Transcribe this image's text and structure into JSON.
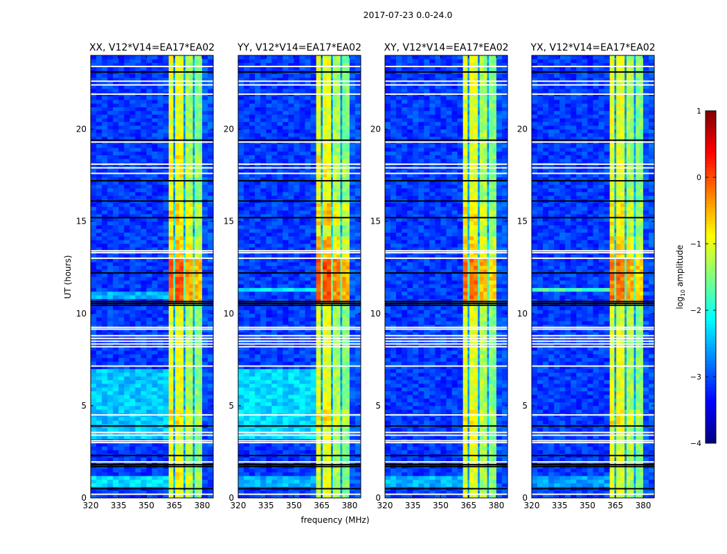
{
  "chart_data": {
    "type": "heatmap",
    "title": "2017-07-23 0.0-24.0",
    "xlabel": "frequency (MHz)",
    "ylabel": "UT (hours)",
    "xlim": [
      320,
      386
    ],
    "ylim": [
      0,
      24
    ],
    "xticks": [
      "320",
      "335",
      "350",
      "365",
      "380"
    ],
    "xtick_values": [
      320,
      335,
      350,
      365,
      380
    ],
    "yticks": [
      "0",
      "5",
      "10",
      "15",
      "20"
    ],
    "ytick_values": [
      0,
      5,
      10,
      15,
      20
    ],
    "colorbar": {
      "label": "log10 amplitude",
      "label_main": "log",
      "label_sub": "10",
      "label_rest": " amplitude",
      "colormap": "jet",
      "range": [
        -4,
        1
      ],
      "ticks": [
        "−4",
        "−3",
        "−2",
        "−1",
        "0",
        "1"
      ],
      "tick_values": [
        -4,
        -3,
        -2,
        -1,
        0,
        1
      ]
    },
    "frequency_profile_log10": [
      [
        320,
        362,
        -3.1
      ],
      [
        362,
        364.5,
        -1.0
      ],
      [
        364.5,
        365.5,
        -2.6
      ],
      [
        365.5,
        370,
        -1.0
      ],
      [
        370,
        371,
        -2.6
      ],
      [
        371,
        375,
        -1.3
      ],
      [
        375,
        376,
        -2.6
      ],
      [
        376,
        380,
        -1.5
      ],
      [
        380,
        386,
        -3.0
      ]
    ],
    "rfi_band": [
      362,
      380
    ],
    "flagged_hours_white": [
      0.2,
      1.95,
      3.0,
      3.1,
      3.4,
      3.55,
      4.5,
      7.15,
      8.2,
      8.35,
      8.5,
      8.65,
      8.8,
      9.15,
      9.25,
      13.3,
      13.4,
      13.0,
      17.6,
      17.9,
      18.1,
      19.3,
      21.9,
      22.4,
      22.6,
      23.4
    ],
    "flagged_hours_black": [
      0.5,
      1.7,
      1.8,
      2.3,
      3.9,
      10.45,
      10.55,
      10.65,
      12.2,
      15.2,
      16.1,
      17.2,
      19.4,
      23.1
    ],
    "panels": [
      {
        "title": "XX, V12*V14=EA17*EA02",
        "band_boost": [
          [
            10.7,
            13.1,
            0.9
          ],
          [
            13.1,
            14.2,
            0.4
          ],
          [
            3.8,
            4.9,
            0.3
          ],
          [
            14.8,
            16.0,
            0.35
          ],
          [
            17.5,
            18.6,
            0.2
          ],
          [
            0.9,
            1.5,
            0.2
          ]
        ],
        "lowfreq_level": [
          [
            3.3,
            7.0,
            -2.4
          ],
          [
            0.7,
            1.3,
            -2.3
          ],
          [
            10.9,
            11.3,
            -2.5
          ]
        ]
      },
      {
        "title": "YY, V12*V14=EA17*EA02",
        "band_boost": [
          [
            10.7,
            13.1,
            1.0
          ],
          [
            13.1,
            14.2,
            0.5
          ],
          [
            3.8,
            4.9,
            0.35
          ],
          [
            14.8,
            16.0,
            0.4
          ],
          [
            17.5,
            18.6,
            0.2
          ]
        ],
        "lowfreq_level": [
          [
            3.3,
            7.0,
            -2.3
          ],
          [
            0.7,
            1.3,
            -2.5
          ],
          [
            11.2,
            11.5,
            -2.2
          ]
        ]
      },
      {
        "title": "XY, V12*V14=EA17*EA02",
        "band_boost": [
          [
            10.7,
            13.1,
            0.8
          ],
          [
            13.1,
            14.2,
            0.3
          ],
          [
            3.8,
            4.9,
            0.2
          ],
          [
            14.8,
            16.0,
            0.2
          ]
        ],
        "lowfreq_level": [
          [
            0.7,
            1.3,
            -2.5
          ]
        ]
      },
      {
        "title": "YX, V12*V14=EA17*EA02",
        "band_boost": [
          [
            10.7,
            13.1,
            0.8
          ],
          [
            13.1,
            14.2,
            0.35
          ],
          [
            3.8,
            4.9,
            0.25
          ],
          [
            14.8,
            16.0,
            0.2
          ]
        ],
        "lowfreq_level": [
          [
            0.7,
            1.3,
            -2.6
          ],
          [
            11.3,
            11.5,
            -1.8
          ]
        ]
      }
    ]
  }
}
